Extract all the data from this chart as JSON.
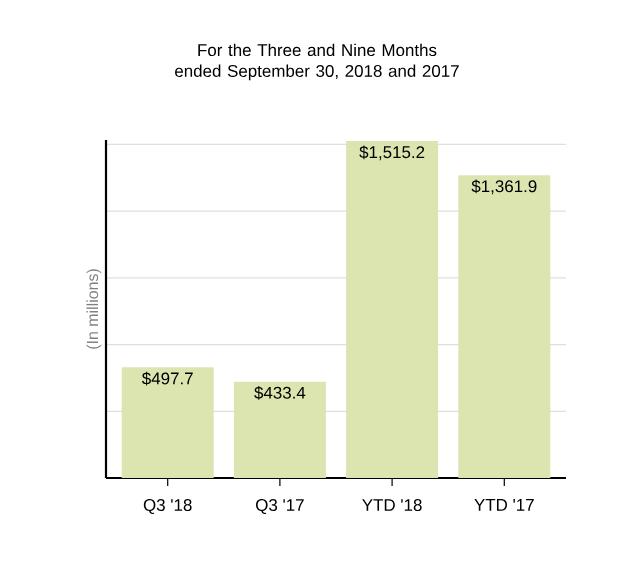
{
  "chart_data": {
    "type": "bar",
    "title": "For the Three and Nine Months ended September 30, 2018 and 2017",
    "ylabel": "(In millions)",
    "categories": [
      "Q3 '18",
      "Q3 '17",
      "YTD '18",
      "YTD '17"
    ],
    "values": [
      497.7,
      433.4,
      1515.2,
      1361.9
    ],
    "value_labels": [
      "$497.7",
      "$433.4",
      "$1,515.2",
      "$1,361.9"
    ],
    "color": "#dce5b0",
    "ylim": [
      0,
      1520
    ],
    "yticks": [
      {
        "value": 300,
        "label": null
      },
      {
        "value": 600,
        "label": null
      },
      {
        "value": 900,
        "label": null
      },
      {
        "value": 1200,
        "label": null
      },
      {
        "value": 1500,
        "label": null
      }
    ],
    "grid": "y",
    "tick_labels": "x"
  }
}
